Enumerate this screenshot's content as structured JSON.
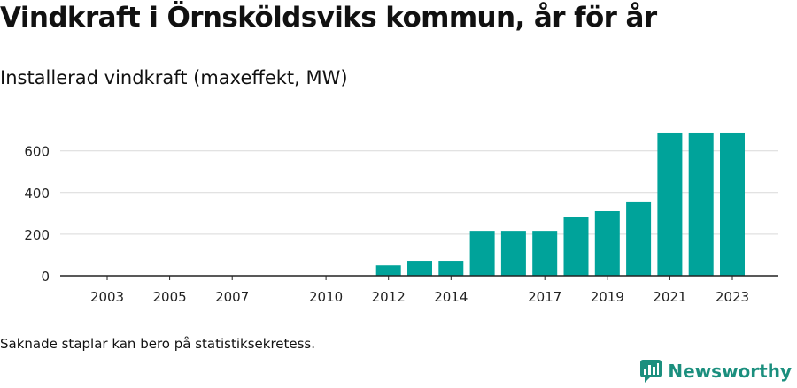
{
  "header": {
    "title": "Vindkraft i Örnsköldsviks kommun, år för år",
    "subtitle": "Installerad vindkraft (maxeffekt, MW)"
  },
  "footnote": "Saknade staplar kan bero på statistiksekretess.",
  "brand": {
    "name": "Newsworthy",
    "icon": "newsworthy-logo-icon",
    "color": "#1b8f7e"
  },
  "chart_data": {
    "type": "bar",
    "title": "",
    "xlabel": "",
    "ylabel": "",
    "categories": [
      "2003",
      "2004",
      "2005",
      "2006",
      "2007",
      "2008",
      "2009",
      "2010",
      "2011",
      "2012",
      "2013",
      "2014",
      "2015",
      "2016",
      "2017",
      "2018",
      "2019",
      "2020",
      "2021",
      "2022",
      "2023"
    ],
    "values": [
      0,
      0,
      0,
      0,
      0,
      0,
      0,
      0,
      0,
      50,
      72,
      72,
      216,
      216,
      216,
      283,
      310,
      357,
      688,
      688,
      688
    ],
    "x_tick_labels": [
      "2003",
      "2005",
      "2007",
      "2010",
      "2012",
      "2014",
      "2017",
      "2019",
      "2021",
      "2023"
    ],
    "y_ticks": [
      0,
      200,
      400,
      600
    ],
    "ylim": [
      0,
      700
    ],
    "grid": true,
    "bar_color": "#00a39a"
  }
}
